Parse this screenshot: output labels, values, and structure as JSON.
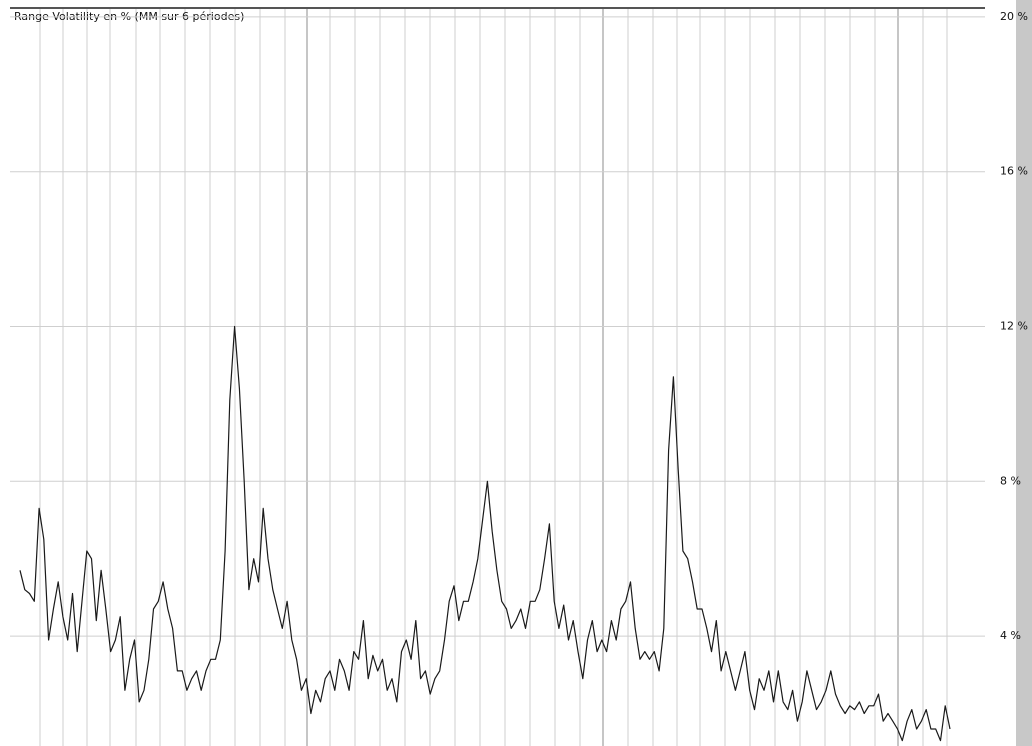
{
  "chart_data": {
    "type": "line",
    "title": "Range Volatility en % (MM sur 6 périodes)",
    "series": [
      {
        "color": "#1a1a1a",
        "values": [
          5.7,
          5.2,
          5.1,
          4.9,
          7.3,
          6.5,
          3.9,
          4.7,
          5.4,
          4.5,
          3.9,
          5.1,
          3.6,
          4.9,
          6.2,
          6.0,
          4.4,
          5.7,
          4.7,
          3.6,
          3.9,
          4.5,
          2.6,
          3.4,
          3.9,
          2.3,
          2.6,
          3.4,
          4.7,
          4.9,
          5.4,
          4.7,
          4.2,
          3.1,
          3.1,
          2.6,
          2.9,
          3.1,
          2.6,
          3.1,
          3.4,
          3.4,
          3.9,
          6.2,
          10.1,
          12.0,
          10.4,
          8.0,
          5.2,
          6.0,
          5.4,
          7.3,
          6.0,
          5.2,
          4.7,
          4.2,
          4.9,
          3.9,
          3.4,
          2.6,
          2.9,
          2.0,
          2.6,
          2.3,
          2.9,
          3.1,
          2.6,
          3.4,
          3.1,
          2.6,
          3.6,
          3.4,
          4.4,
          2.9,
          3.5,
          3.1,
          3.4,
          2.6,
          2.9,
          2.3,
          3.6,
          3.9,
          3.4,
          4.4,
          2.9,
          3.1,
          2.5,
          2.9,
          3.1,
          3.9,
          4.9,
          5.3,
          4.4,
          4.9,
          4.9,
          5.4,
          6.0,
          7.0,
          8.0,
          6.7,
          5.7,
          4.9,
          4.7,
          4.2,
          4.4,
          4.7,
          4.2,
          4.9,
          4.9,
          5.2,
          6.0,
          6.9,
          4.9,
          4.2,
          4.8,
          3.9,
          4.4,
          3.6,
          2.9,
          3.9,
          4.4,
          3.6,
          3.9,
          3.6,
          4.4,
          3.9,
          4.7,
          4.9,
          5.4,
          4.2,
          3.4,
          3.6,
          3.4,
          3.6,
          3.1,
          4.2,
          8.8,
          10.7,
          8.3,
          6.2,
          6.0,
          5.4,
          4.7,
          4.7,
          4.2,
          3.6,
          4.4,
          3.1,
          3.6,
          3.1,
          2.6,
          3.1,
          3.6,
          2.6,
          2.1,
          2.9,
          2.6,
          3.1,
          2.3,
          3.1,
          2.3,
          2.1,
          2.6,
          1.8,
          2.3,
          3.1,
          2.6,
          2.1,
          2.3,
          2.6,
          3.1,
          2.5,
          2.2,
          2.0,
          2.2,
          2.1,
          2.3,
          2.0,
          2.2,
          2.2,
          2.5,
          1.8,
          2.0,
          1.8,
          1.6,
          1.3,
          1.8,
          2.1,
          1.6,
          1.8,
          2.1,
          1.6,
          1.6,
          1.3,
          2.2,
          1.6
        ]
      }
    ],
    "ylim": [
      1.16,
      20.23
    ],
    "yticks": [
      {
        "value": 4,
        "label": "4 %"
      },
      {
        "value": 8,
        "label": "8 %"
      },
      {
        "value": 12,
        "label": "12 %"
      },
      {
        "value": 16,
        "label": "16 %"
      },
      {
        "value": 20,
        "label": "20 %"
      }
    ],
    "grid": true,
    "y_axis_side": "right"
  }
}
